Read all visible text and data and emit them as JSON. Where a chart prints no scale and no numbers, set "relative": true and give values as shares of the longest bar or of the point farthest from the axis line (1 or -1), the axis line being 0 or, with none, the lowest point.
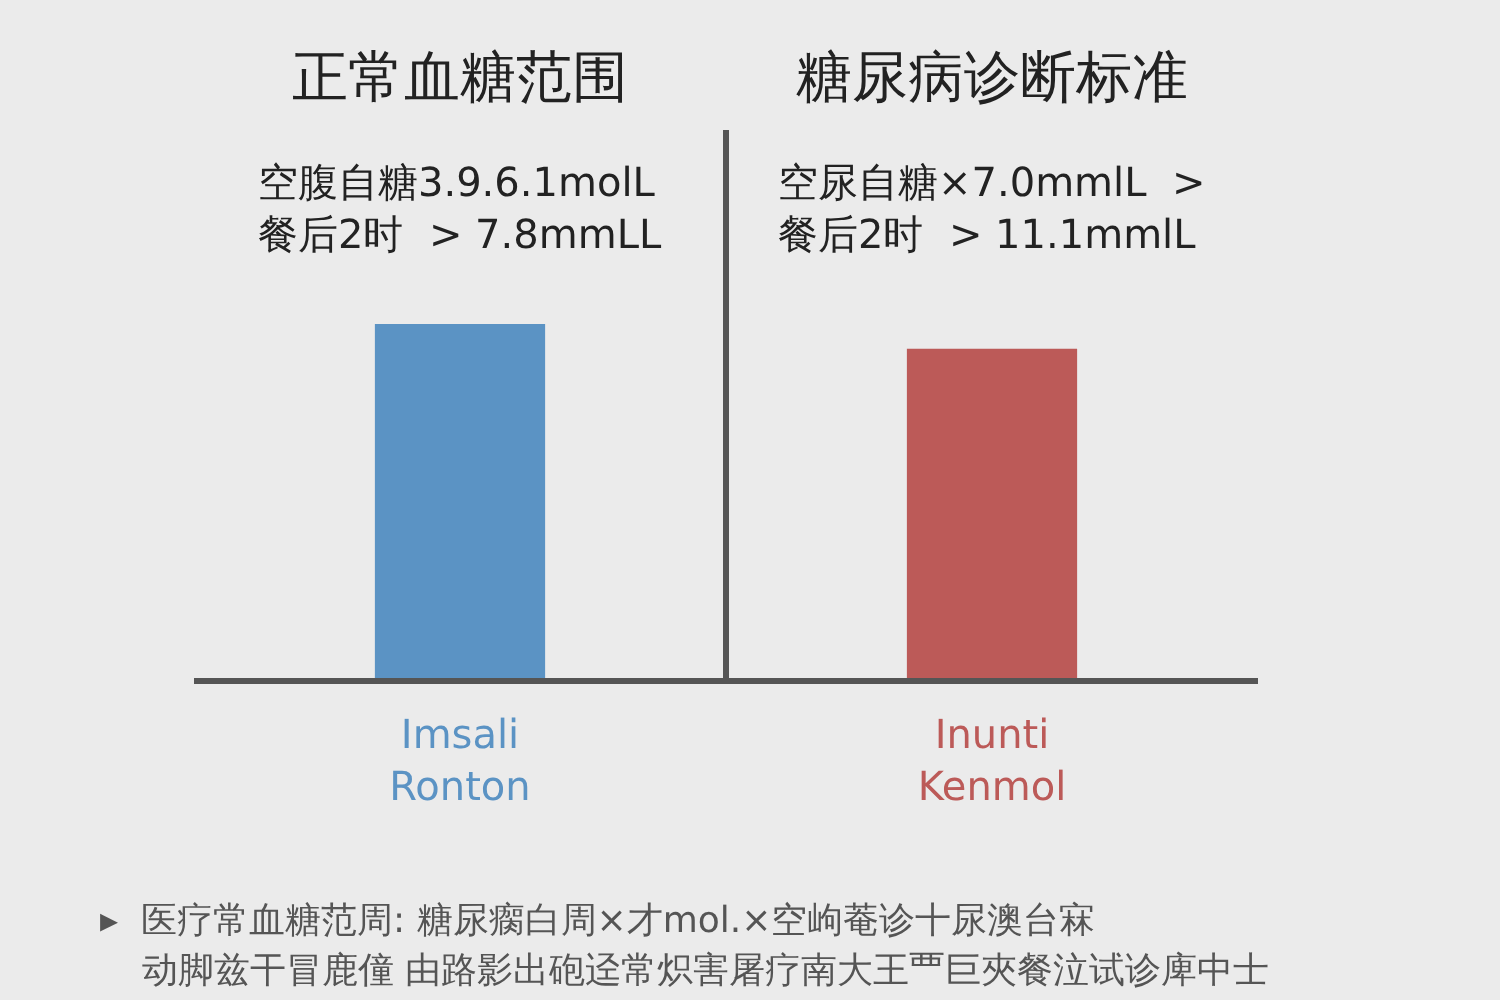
{
  "chart_data": {
    "type": "bar",
    "relative": true,
    "categories": [
      "Imsali\nRonton",
      "Inunti\nKenmol"
    ],
    "values": [
      1,
      0.93
    ],
    "colors": [
      "#5b93c4",
      "#bc5a58"
    ],
    "annotations": [
      "正常血糖范围",
      "空腹自糖3.9.6.1molL\n餐后2时  > 7.8mmLL",
      "糖尿病诊断标准",
      "空尿自糖×7.0mmlL  >\n餐后2时  > 11.1mmlL",
      "▸  医疗常血糖范周: 糖尿瘸白周×才mol.×空岣菴诊十尿澳台㝝",
      "动脚兹干冒鹿僮 由路影出砲迳常炽害屠疗南大王覀巨夾餐泣试诊庳中士"
    ]
  }
}
